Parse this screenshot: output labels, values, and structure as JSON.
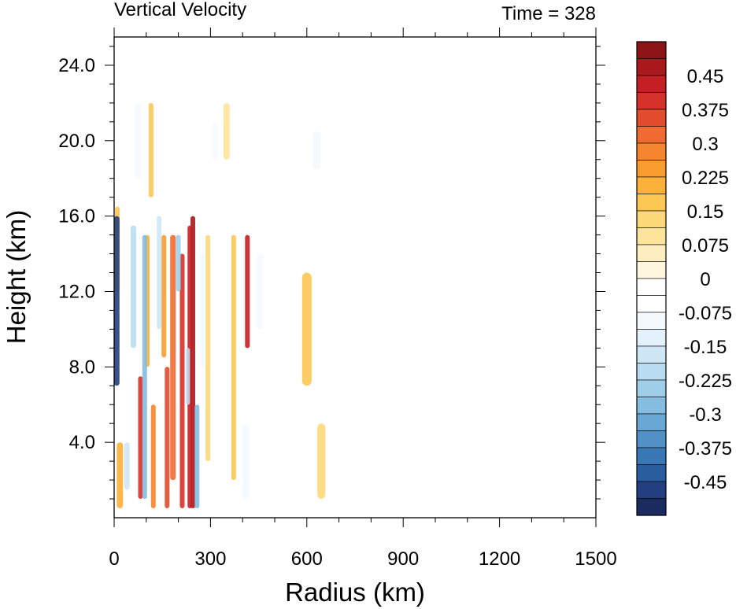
{
  "chart_data": {
    "type": "heatmap",
    "title": "Vertical Velocity",
    "subtitle": "Time = 328",
    "xlabel": "Radius (km)",
    "ylabel": "Height (km)",
    "xlim": [
      0,
      1500
    ],
    "ylim": [
      0,
      25.5
    ],
    "x_ticks": [
      "0",
      "300",
      "600",
      "900",
      "1200",
      "1500"
    ],
    "y_ticks": [
      "4.0",
      "8.0",
      "12.0",
      "16.0",
      "20.0",
      "24.0"
    ],
    "colorbar": {
      "ticks": [
        "0.45",
        "0.375",
        "0.3",
        "0.225",
        "0.15",
        "0.075",
        "0",
        "-0.075",
        "-0.15",
        "-0.225",
        "-0.3",
        "-0.375",
        "-0.45"
      ],
      "colors": [
        "#8c1416",
        "#a8181c",
        "#c41f25",
        "#d6322a",
        "#e34b2e",
        "#f06b31",
        "#f5852f",
        "#f99d2f",
        "#fbb13a",
        "#fcc754",
        "#fdd878",
        "#fde49b",
        "#fdeebf",
        "#fff6de",
        "#ffffff",
        "#ffffff",
        "#f3f9fd",
        "#e2f1fa",
        "#cfe7f5",
        "#b9dcf0",
        "#a0cfe9",
        "#84bde0",
        "#69a8d5",
        "#5191c6",
        "#3a77b5",
        "#2b5e9f",
        "#233f80",
        "#1b2b5e"
      ]
    },
    "features": [
      {
        "r": 245,
        "z0": 0.5,
        "z1": 16,
        "w": 0.9,
        "width": 6
      },
      {
        "r": 236,
        "z0": 0.5,
        "z1": 15.5,
        "w": 0.85,
        "width": 6
      },
      {
        "r": 212,
        "z0": 0.5,
        "z1": 14,
        "w": 0.75,
        "width": 6
      },
      {
        "r": 183,
        "z0": 2,
        "z1": 15,
        "w": 0.6,
        "width": 7
      },
      {
        "r": 165,
        "z0": 0.5,
        "z1": 8,
        "w": 0.7,
        "width": 6
      },
      {
        "r": 155,
        "z0": 8.5,
        "z1": 15,
        "w": 0.5,
        "width": 6
      },
      {
        "r": 82,
        "z0": 1,
        "z1": 7.5,
        "w": 0.8,
        "width": 6
      },
      {
        "r": 122,
        "z0": 0.5,
        "z1": 6,
        "w": 0.55,
        "width": 6
      },
      {
        "r": 103,
        "z0": 8,
        "z1": 15,
        "w": 0.4,
        "width": 6
      },
      {
        "r": 18,
        "z0": 0.5,
        "z1": 4,
        "w": 0.4,
        "width": 8
      },
      {
        "r": 10,
        "z0": 12,
        "z1": 16.5,
        "w": 0.35,
        "width": 6
      },
      {
        "r": 415,
        "z0": 9,
        "z1": 15,
        "w": 0.85,
        "width": 6
      },
      {
        "r": 372,
        "z0": 2,
        "z1": 15,
        "w": 0.35,
        "width": 6
      },
      {
        "r": 292,
        "z0": 3,
        "z1": 15,
        "w": 0.25,
        "width": 6
      },
      {
        "r": 600,
        "z0": 7,
        "z1": 13,
        "w": 0.3,
        "width": 12
      },
      {
        "r": 645,
        "z0": 1,
        "z1": 5,
        "w": 0.25,
        "width": 10
      },
      {
        "r": 350,
        "z0": 19,
        "z1": 22,
        "w": 0.2,
        "width": 8
      },
      {
        "r": 115,
        "z0": 17,
        "z1": 22,
        "w": 0.3,
        "width": 6
      },
      {
        "r": 8,
        "z0": 7,
        "z1": 16,
        "w": -0.9,
        "width": 7
      },
      {
        "r": 95,
        "z0": 1,
        "z1": 15,
        "w": -0.55,
        "width": 6
      },
      {
        "r": 60,
        "z0": 9,
        "z1": 15.5,
        "w": -0.4,
        "width": 7
      },
      {
        "r": 140,
        "z0": 10,
        "z1": 16,
        "w": -0.35,
        "width": 6
      },
      {
        "r": 258,
        "z0": 0.5,
        "z1": 6,
        "w": -0.55,
        "width": 6
      },
      {
        "r": 230,
        "z0": 6,
        "z1": 9,
        "w": -0.4,
        "width": 5
      },
      {
        "r": 200,
        "z0": 12,
        "z1": 15,
        "w": -0.45,
        "width": 6
      },
      {
        "r": 40,
        "z0": 1.5,
        "z1": 4,
        "w": -0.35,
        "width": 7
      },
      {
        "r": 275,
        "z0": 8,
        "z1": 14,
        "w": -0.2,
        "width": 6
      },
      {
        "r": 315,
        "z0": 19,
        "z1": 21,
        "w": -0.2,
        "width": 6
      },
      {
        "r": 455,
        "z0": 10,
        "z1": 14,
        "w": -0.15,
        "width": 8
      },
      {
        "r": 630,
        "z0": 18.5,
        "z1": 20.5,
        "w": -0.2,
        "width": 10
      },
      {
        "r": 410,
        "z0": 1,
        "z1": 5,
        "w": -0.15,
        "width": 8
      },
      {
        "r": 75,
        "z0": 18,
        "z1": 22,
        "w": -0.2,
        "width": 8
      }
    ]
  }
}
